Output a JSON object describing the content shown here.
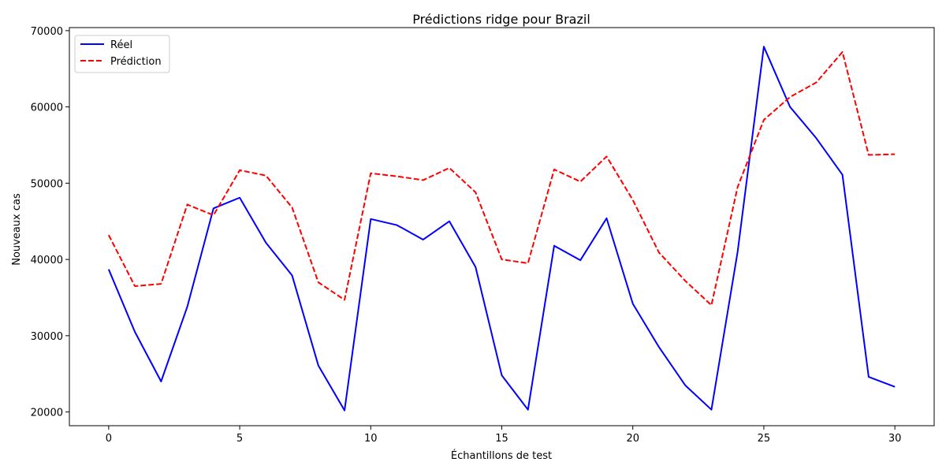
{
  "chart_data": {
    "type": "line",
    "title": "Prédictions ridge pour Brazil",
    "xlabel": "Échantillons de test",
    "ylabel": "Nouveaux cas",
    "xlim": [
      -1.5,
      31.5
    ],
    "ylim": [
      18200,
      70400
    ],
    "xticks": [
      0,
      5,
      10,
      15,
      20,
      25,
      30
    ],
    "xtick_labels": [
      "0",
      "5",
      "10",
      "15",
      "20",
      "25",
      "30"
    ],
    "yticks": [
      20000,
      30000,
      40000,
      50000,
      60000,
      70000
    ],
    "ytick_labels": [
      "20000",
      "30000",
      "40000",
      "50000",
      "60000",
      "70000"
    ],
    "grid": false,
    "legend": "top-left",
    "x": [
      0,
      1,
      2,
      3,
      4,
      5,
      6,
      7,
      8,
      9,
      10,
      11,
      12,
      13,
      14,
      15,
      16,
      17,
      18,
      19,
      20,
      21,
      22,
      23,
      24,
      25,
      26,
      27,
      28,
      29,
      30
    ],
    "series": [
      {
        "name": "Réel",
        "color": "#0000ff",
        "style": "solid",
        "values": [
          38700,
          30500,
          24000,
          33800,
          46700,
          48100,
          42200,
          37900,
          26100,
          20200,
          45300,
          44500,
          42600,
          45000,
          39000,
          24800,
          20300,
          41800,
          39900,
          45400,
          34200,
          28500,
          23500,
          20300,
          41000,
          67900,
          60000,
          55900,
          51100,
          24600,
          23300
        ]
      },
      {
        "name": "Prédiction",
        "color": "#ff0000",
        "style": "dashed",
        "values": [
          43200,
          36500,
          36800,
          47200,
          45800,
          51700,
          51000,
          46800,
          37000,
          34700,
          51300,
          50900,
          50400,
          52000,
          48800,
          40000,
          39500,
          51800,
          50200,
          53500,
          47800,
          40900,
          37200,
          34000,
          49500,
          58300,
          61300,
          63200,
          67200,
          53700,
          53800
        ]
      }
    ]
  }
}
